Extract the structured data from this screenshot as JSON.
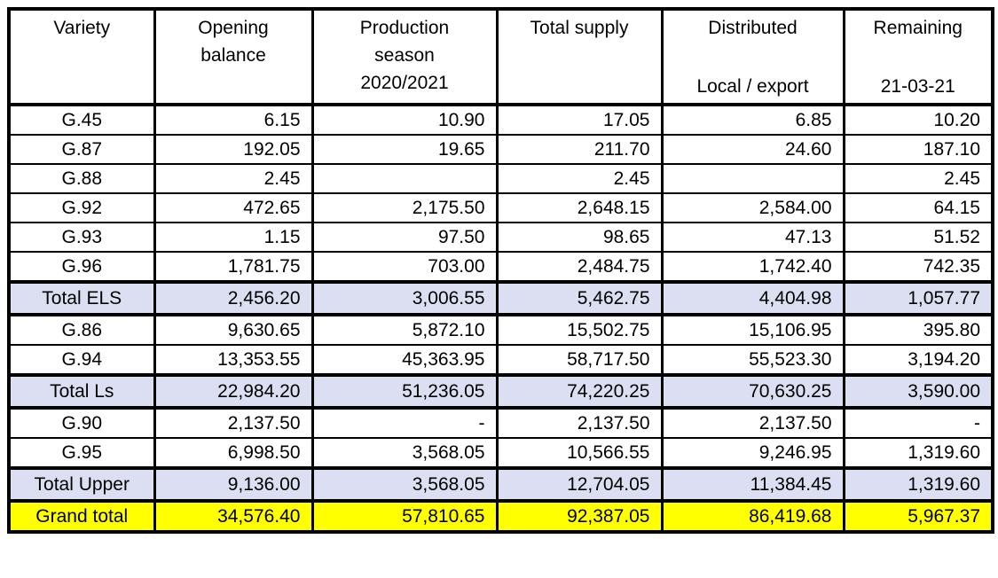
{
  "colors": {
    "subtotal_bg": "#DBDFF1",
    "grand_bg": "#FFFF00",
    "border": "#000000"
  },
  "table": {
    "columns": [
      {
        "label": "Variety",
        "sub": ""
      },
      {
        "label": "Opening\nbalance",
        "sub": ""
      },
      {
        "label": "Production\nseason\n2020/2021",
        "sub": ""
      },
      {
        "label": "Total supply",
        "sub": ""
      },
      {
        "label": "Distributed",
        "sub": "Local / export"
      },
      {
        "label": "Remaining",
        "sub": "21-03-21"
      }
    ],
    "rows": [
      {
        "variety": "G.45",
        "type": "data",
        "values": [
          "6.15",
          "10.90",
          "17.05",
          "6.85",
          "10.20"
        ]
      },
      {
        "variety": "G.87",
        "type": "data",
        "values": [
          "192.05",
          "19.65",
          "211.70",
          "24.60",
          "187.10"
        ]
      },
      {
        "variety": "G.88",
        "type": "data",
        "values": [
          "2.45",
          "",
          "2.45",
          "",
          "2.45"
        ]
      },
      {
        "variety": "G.92",
        "type": "data",
        "values": [
          "472.65",
          "2,175.50",
          "2,648.15",
          "2,584.00",
          "64.15"
        ]
      },
      {
        "variety": "G.93",
        "type": "data",
        "values": [
          "1.15",
          "97.50",
          "98.65",
          "47.13",
          "51.52"
        ]
      },
      {
        "variety": "G.96",
        "type": "data",
        "values": [
          "1,781.75",
          "703.00",
          "2,484.75",
          "1,742.40",
          "742.35"
        ]
      },
      {
        "variety": "Total ELS",
        "type": "subtotal",
        "values": [
          "2,456.20",
          "3,006.55",
          "5,462.75",
          "4,404.98",
          "1,057.77"
        ]
      },
      {
        "variety": "G.86",
        "type": "data",
        "values": [
          "9,630.65",
          "5,872.10",
          "15,502.75",
          "15,106.95",
          "395.80"
        ]
      },
      {
        "variety": "G.94",
        "type": "data",
        "values": [
          "13,353.55",
          "45,363.95",
          "58,717.50",
          "55,523.30",
          "3,194.20"
        ]
      },
      {
        "variety": "Total Ls",
        "type": "subtotal",
        "values": [
          "22,984.20",
          "51,236.05",
          "74,220.25",
          "70,630.25",
          "3,590.00"
        ]
      },
      {
        "variety": "G.90",
        "type": "data",
        "values": [
          "2,137.50",
          "-",
          "2,137.50",
          "2,137.50",
          "-"
        ]
      },
      {
        "variety": "G.95",
        "type": "data",
        "values": [
          "6,998.50",
          "3,568.05",
          "10,566.55",
          "9,246.95",
          "1,319.60"
        ]
      },
      {
        "variety": "Total Upper",
        "type": "subtotal",
        "values": [
          "9,136.00",
          "3,568.05",
          "12,704.05",
          "11,384.45",
          "1,319.60"
        ]
      },
      {
        "variety": "Grand total",
        "type": "grand",
        "values": [
          "34,576.40",
          "57,810.65",
          "92,387.05",
          "86,419.68",
          "5,967.37"
        ]
      }
    ]
  }
}
